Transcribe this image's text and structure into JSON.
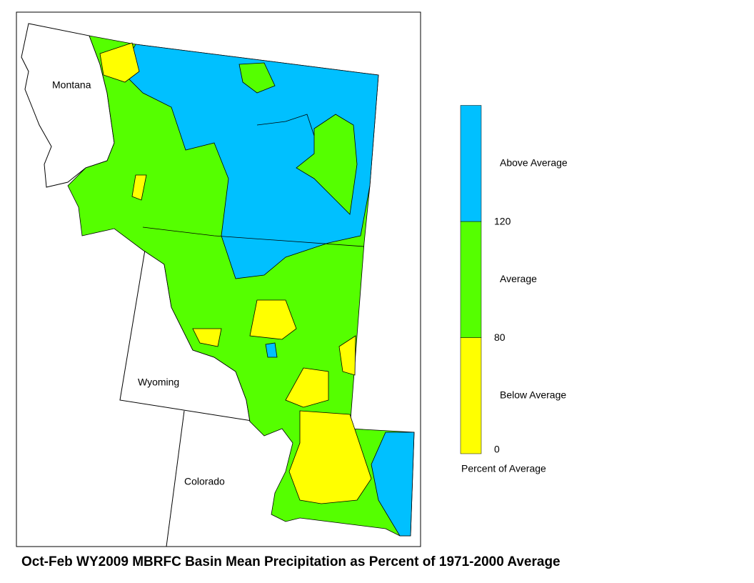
{
  "map": {
    "title": "Oct-Feb WY2009 MBRFC Basin Mean Precipitation as Percent of 1971-2000 Average",
    "states": [
      "Montana",
      "Wyoming",
      "Colorado"
    ],
    "legend": {
      "title": "Percent of Average",
      "bands": [
        {
          "label": "Below Average",
          "color": "#ffff00"
        },
        {
          "label": "Average",
          "color": "#55ff00"
        },
        {
          "label": "Above Average",
          "color": "#00c0ff"
        }
      ],
      "thresholds": [
        0,
        80,
        120
      ]
    }
  }
}
